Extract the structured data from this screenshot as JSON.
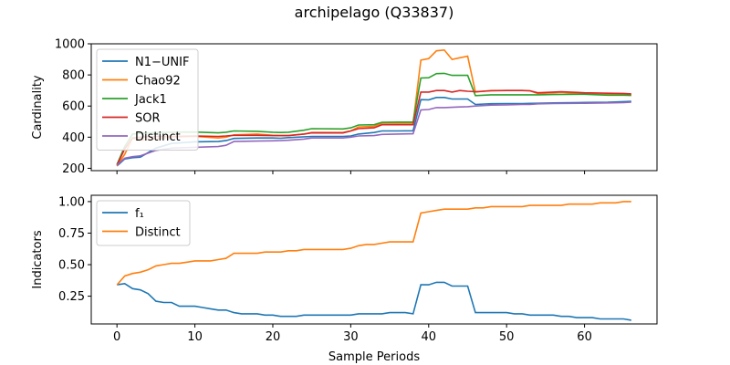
{
  "figure": {
    "title": "archipelago (Q33837)"
  },
  "chart_data": [
    {
      "type": "line",
      "ylabel": "Cardinality",
      "xlim": [
        -3.3,
        69.3
      ],
      "ylim": [
        185,
        1000
      ],
      "x_ticks": [
        0,
        10,
        20,
        30,
        40,
        50,
        60
      ],
      "y_ticks": [
        200,
        400,
        600,
        800,
        1000
      ],
      "x_ticklabels_visible": false,
      "legend": "upper-left",
      "series": [
        {
          "name": "N1−UNIF",
          "color": "#1f77b4",
          "x": [
            0,
            1,
            2,
            3,
            5,
            7,
            10,
            13,
            14,
            15,
            18,
            20,
            21,
            22,
            25,
            29,
            30,
            31,
            33,
            34,
            36,
            38,
            39,
            40,
            41,
            42,
            43,
            44,
            45,
            46,
            48,
            50,
            52,
            53,
            54,
            56,
            60,
            63,
            65,
            66
          ],
          "y": [
            215,
            260,
            268,
            272,
            330,
            360,
            370,
            372,
            378,
            392,
            395,
            395,
            393,
            397,
            405,
            405,
            408,
            420,
            430,
            440,
            440,
            441,
            641,
            640,
            655,
            655,
            645,
            645,
            645,
            610,
            615,
            616,
            616,
            617,
            618,
            620,
            623,
            625,
            628,
            630
          ]
        },
        {
          "name": "Chao92",
          "color": "#ff7f0e",
          "x": [
            0,
            1,
            2,
            3,
            5,
            7,
            10,
            13,
            14,
            15,
            18,
            20,
            21,
            22,
            24,
            25,
            29,
            30,
            31,
            33,
            34,
            36,
            38,
            39,
            40,
            41,
            42,
            43,
            44,
            45,
            46,
            48,
            50,
            52,
            53,
            54,
            56,
            57,
            60,
            63,
            65,
            66
          ],
          "y": [
            215,
            290,
            395,
            380,
            390,
            400,
            405,
            395,
            400,
            415,
            420,
            412,
            410,
            410,
            420,
            430,
            430,
            440,
            465,
            470,
            490,
            490,
            490,
            895,
            905,
            955,
            960,
            900,
            910,
            920,
            690,
            700,
            700,
            700,
            698,
            680,
            685,
            688,
            678,
            673,
            675,
            672
          ]
        },
        {
          "name": "Jack1",
          "color": "#2ca02c",
          "x": [
            0,
            1,
            2,
            3,
            5,
            7,
            10,
            13,
            14,
            15,
            18,
            20,
            21,
            22,
            24,
            25,
            29,
            30,
            31,
            33,
            34,
            36,
            38,
            39,
            40,
            41,
            42,
            43,
            44,
            45,
            46,
            48,
            50,
            52,
            53,
            54,
            56,
            60,
            63,
            65,
            66
          ],
          "y": [
            225,
            340,
            420,
            425,
            430,
            432,
            433,
            428,
            432,
            440,
            438,
            432,
            430,
            432,
            445,
            455,
            453,
            460,
            478,
            480,
            495,
            497,
            497,
            780,
            782,
            808,
            810,
            797,
            797,
            797,
            667,
            672,
            672,
            672,
            672,
            672,
            674,
            676,
            670,
            670,
            668
          ]
        },
        {
          "name": "SOR",
          "color": "#d62728",
          "x": [
            0,
            1,
            2,
            3,
            5,
            7,
            10,
            13,
            14,
            15,
            18,
            20,
            21,
            22,
            24,
            25,
            29,
            30,
            31,
            33,
            34,
            36,
            38,
            39,
            40,
            41,
            42,
            43,
            44,
            45,
            46,
            48,
            50,
            52,
            53,
            54,
            56,
            57,
            60,
            63,
            65,
            66
          ],
          "y": [
            220,
            325,
            395,
            400,
            405,
            405,
            407,
            405,
            408,
            412,
            412,
            410,
            410,
            410,
            420,
            428,
            427,
            440,
            455,
            460,
            480,
            480,
            480,
            690,
            690,
            700,
            700,
            690,
            700,
            695,
            692,
            698,
            700,
            700,
            698,
            685,
            690,
            692,
            685,
            682,
            681,
            678
          ]
        },
        {
          "name": "Distinct",
          "color": "#9467bd",
          "x": [
            0,
            1,
            2,
            3,
            5,
            7,
            10,
            13,
            14,
            15,
            18,
            20,
            21,
            22,
            24,
            25,
            29,
            30,
            31,
            33,
            34,
            36,
            38,
            39,
            40,
            41,
            42,
            43,
            44,
            45,
            46,
            48,
            50,
            52,
            53,
            54,
            56,
            60,
            63,
            65,
            66
          ],
          "y": [
            220,
            265,
            275,
            280,
            315,
            330,
            335,
            340,
            348,
            372,
            375,
            377,
            378,
            380,
            388,
            395,
            395,
            400,
            408,
            410,
            418,
            420,
            422,
            575,
            578,
            590,
            590,
            592,
            594,
            596,
            600,
            606,
            608,
            610,
            610,
            614,
            616,
            618,
            620,
            622,
            625
          ]
        }
      ]
    },
    {
      "type": "line",
      "xlabel": "Sample Periods",
      "ylabel": "Indicators",
      "xlim": [
        -3.3,
        69.3
      ],
      "ylim": [
        0.03,
        1.05
      ],
      "x_ticks": [
        0,
        10,
        20,
        30,
        40,
        50,
        60
      ],
      "y_ticks": [
        0.25,
        0.5,
        0.75,
        1.0
      ],
      "y_ticklabels": [
        "0.25",
        "0.50",
        "0.75",
        "1.00"
      ],
      "legend": "upper-left",
      "series": [
        {
          "name": "f₁",
          "color": "#1f77b4",
          "x": [
            0,
            1,
            2,
            3,
            4,
            5,
            6,
            7,
            8,
            9,
            10,
            11,
            12,
            13,
            14,
            15,
            16,
            17,
            18,
            19,
            20,
            21,
            22,
            23,
            24,
            25,
            26,
            27,
            28,
            29,
            30,
            31,
            32,
            33,
            34,
            35,
            36,
            37,
            38,
            39,
            40,
            41,
            42,
            43,
            44,
            45,
            46,
            47,
            48,
            49,
            50,
            51,
            52,
            53,
            54,
            55,
            56,
            57,
            58,
            59,
            60,
            61,
            62,
            63,
            64,
            65,
            66
          ],
          "y": [
            0.34,
            0.35,
            0.31,
            0.3,
            0.27,
            0.21,
            0.2,
            0.2,
            0.17,
            0.17,
            0.17,
            0.16,
            0.15,
            0.14,
            0.14,
            0.12,
            0.11,
            0.11,
            0.11,
            0.1,
            0.1,
            0.09,
            0.09,
            0.09,
            0.1,
            0.1,
            0.1,
            0.1,
            0.1,
            0.1,
            0.1,
            0.11,
            0.11,
            0.11,
            0.11,
            0.12,
            0.12,
            0.12,
            0.11,
            0.34,
            0.34,
            0.36,
            0.36,
            0.33,
            0.33,
            0.33,
            0.12,
            0.12,
            0.12,
            0.12,
            0.12,
            0.11,
            0.11,
            0.1,
            0.1,
            0.1,
            0.1,
            0.09,
            0.09,
            0.08,
            0.08,
            0.08,
            0.07,
            0.07,
            0.07,
            0.07,
            0.06
          ]
        },
        {
          "name": "Distinct",
          "color": "#ff7f0e",
          "x": [
            0,
            1,
            2,
            3,
            4,
            5,
            6,
            7,
            8,
            9,
            10,
            11,
            12,
            13,
            14,
            15,
            16,
            17,
            18,
            19,
            20,
            21,
            22,
            23,
            24,
            25,
            26,
            27,
            28,
            29,
            30,
            31,
            32,
            33,
            34,
            35,
            36,
            37,
            38,
            39,
            40,
            41,
            42,
            43,
            44,
            45,
            46,
            47,
            48,
            49,
            50,
            51,
            52,
            53,
            54,
            55,
            56,
            57,
            58,
            59,
            60,
            61,
            62,
            63,
            64,
            65,
            66
          ],
          "y": [
            0.34,
            0.41,
            0.43,
            0.44,
            0.46,
            0.49,
            0.5,
            0.51,
            0.51,
            0.52,
            0.53,
            0.53,
            0.53,
            0.54,
            0.55,
            0.59,
            0.59,
            0.59,
            0.59,
            0.6,
            0.6,
            0.6,
            0.61,
            0.61,
            0.62,
            0.62,
            0.62,
            0.62,
            0.62,
            0.62,
            0.63,
            0.65,
            0.66,
            0.66,
            0.67,
            0.68,
            0.68,
            0.68,
            0.68,
            0.91,
            0.92,
            0.93,
            0.94,
            0.94,
            0.94,
            0.94,
            0.95,
            0.95,
            0.96,
            0.96,
            0.96,
            0.96,
            0.96,
            0.97,
            0.97,
            0.97,
            0.97,
            0.97,
            0.98,
            0.98,
            0.98,
            0.98,
            0.99,
            0.99,
            0.99,
            1.0,
            1.0
          ]
        }
      ]
    }
  ]
}
